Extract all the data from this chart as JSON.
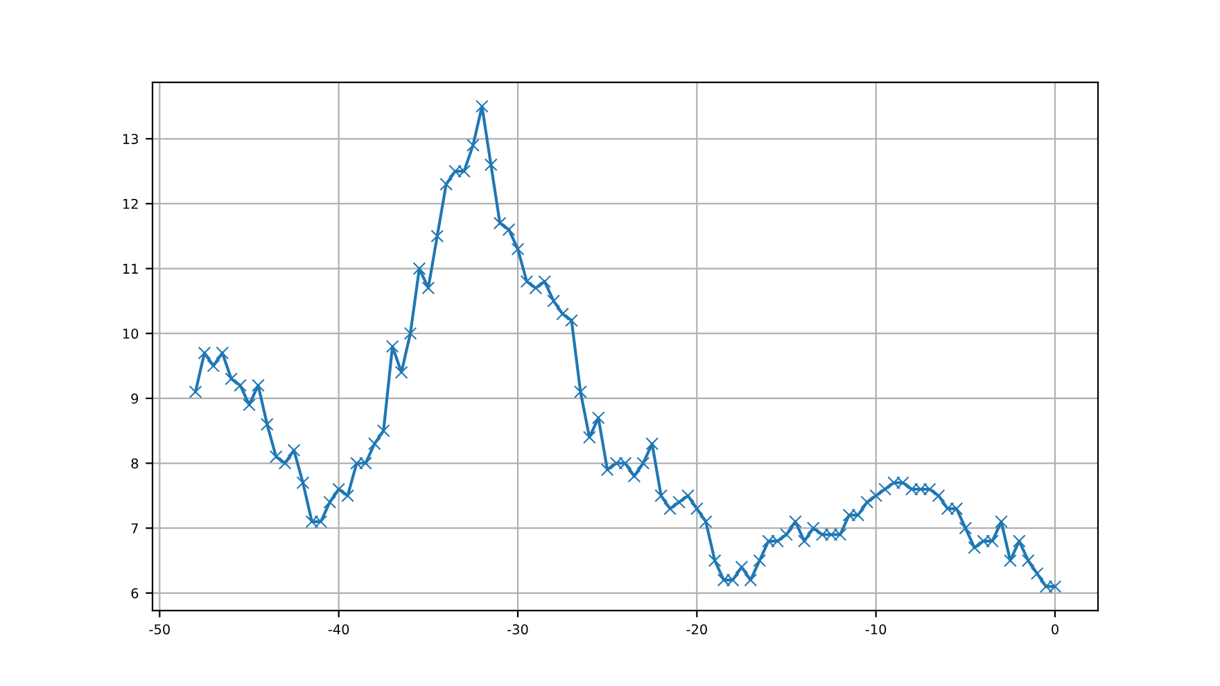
{
  "chart_data": {
    "type": "line",
    "marker": "cross",
    "grid": true,
    "x": [
      -48,
      -47.5,
      -47,
      -46.5,
      -46,
      -45.5,
      -45,
      -44.5,
      -44,
      -43.5,
      -43,
      -42.5,
      -42,
      -41.5,
      -41,
      -40.5,
      -40,
      -39.5,
      -39,
      -38.5,
      -38,
      -37.5,
      -37,
      -36.5,
      -36,
      -35.5,
      -35,
      -34.5,
      -34,
      -33.5,
      -33,
      -32.5,
      -32,
      -31.5,
      -31,
      -30.5,
      -30,
      -29.5,
      -29,
      -28.5,
      -28,
      -27.5,
      -27,
      -26.5,
      -26,
      -25.5,
      -25,
      -24.5,
      -24,
      -23.5,
      -23,
      -22.5,
      -22,
      -21.5,
      -21,
      -20.5,
      -20,
      -19.5,
      -19,
      -18.5,
      -18,
      -17.5,
      -17,
      -16.5,
      -16,
      -15.5,
      -15,
      -14.5,
      -14,
      -13.5,
      -13,
      -12.5,
      -12,
      -11.5,
      -11,
      -10.5,
      -10,
      -9.5,
      -9,
      -8.5,
      -8,
      -7.5,
      -7,
      -6.5,
      -6,
      -5.5,
      -5,
      -4.5,
      -4,
      -3.5,
      -3,
      -2.5,
      -2,
      -1.5,
      -1,
      -0.5,
      0
    ],
    "series": [
      {
        "color": "#1f77b4",
        "values": [
          9.1,
          9.7,
          9.5,
          9.7,
          9.3,
          9.2,
          8.9,
          9.2,
          8.6,
          8.1,
          8.0,
          8.2,
          7.7,
          7.1,
          7.1,
          7.4,
          7.6,
          7.5,
          8.0,
          8.0,
          8.3,
          8.5,
          9.8,
          9.4,
          10.0,
          11.0,
          10.7,
          11.5,
          12.3,
          12.5,
          12.5,
          12.9,
          13.5,
          12.6,
          11.7,
          11.6,
          11.3,
          10.8,
          10.7,
          10.8,
          10.5,
          10.3,
          10.2,
          9.1,
          8.4,
          8.7,
          7.9,
          8.0,
          8.0,
          7.8,
          8.0,
          8.3,
          7.5,
          7.3,
          7.4,
          7.5,
          7.3,
          7.1,
          6.5,
          6.2,
          6.2,
          6.4,
          6.2,
          6.5,
          6.8,
          6.8,
          6.9,
          7.1,
          6.8,
          7.0,
          6.9,
          6.9,
          6.9,
          7.2,
          7.2,
          7.4,
          7.5,
          7.6,
          7.7,
          7.7,
          7.6,
          7.6,
          7.6,
          7.5,
          7.3,
          7.3,
          7.0,
          6.7,
          6.8,
          6.8,
          7.1,
          6.5,
          6.8,
          6.5,
          6.3,
          6.1,
          6.1
        ]
      }
    ],
    "xlim": [
      -50.4,
      2.4
    ],
    "ylim": [
      5.73,
      13.87
    ],
    "xticks": [
      -50,
      -40,
      -30,
      -20,
      -10,
      0
    ],
    "yticks": [
      6,
      7,
      8,
      9,
      10,
      11,
      12,
      13
    ]
  }
}
